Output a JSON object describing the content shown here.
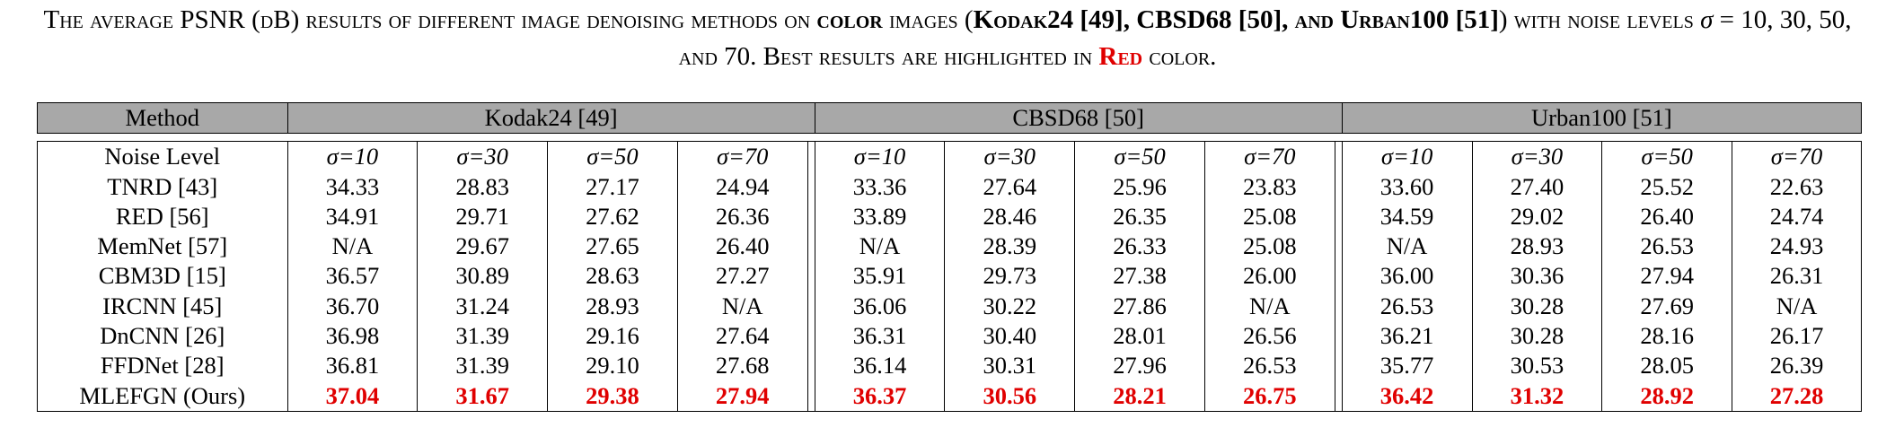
{
  "caption": {
    "part1": "The average PSNR (dB) results of different image denoising methods on ",
    "color_images": "color",
    "part2": " images (",
    "datasets_bold": "Kodak24 [49], CBSD68 [50], and Urban100 [51]",
    "part3": ") with noise levels ",
    "sigma_symbol": "σ",
    "part4": " = 10, 30, 50, and 70. Best results are highlighted in ",
    "red_word": "Red",
    "part5": " color."
  },
  "table": {
    "method_header": "Method",
    "datasets": [
      "Kodak24 [49]",
      "CBSD68 [50]",
      "Urban100 [51]"
    ],
    "noise_label": "Noise Level",
    "noise_levels": [
      "σ=10",
      "σ=30",
      "σ=50",
      "σ=70"
    ],
    "rows": [
      {
        "method": "TNRD  [43]",
        "values": [
          "34.33",
          "28.83",
          "27.17",
          "24.94",
          "33.36",
          "27.64",
          "25.96",
          "23.83",
          "33.60",
          "27.40",
          "25.52",
          "22.63"
        ]
      },
      {
        "method": "RED [56]",
        "values": [
          "34.91",
          "29.71",
          "27.62",
          "26.36",
          "33.89",
          "28.46",
          "26.35",
          "25.08",
          "34.59",
          "29.02",
          "26.40",
          "24.74"
        ]
      },
      {
        "method": "MemNet [57]",
        "values": [
          "N/A",
          "29.67",
          "27.65",
          "26.40",
          "N/A",
          "28.39",
          "26.33",
          "25.08",
          "N/A",
          "28.93",
          "26.53",
          "24.93"
        ]
      },
      {
        "method": "CBM3D [15]",
        "values": [
          "36.57",
          "30.89",
          "28.63",
          "27.27",
          "35.91",
          "29.73",
          "27.38",
          "26.00",
          "36.00",
          "30.36",
          "27.94",
          "26.31"
        ]
      },
      {
        "method": "IRCNN [45]",
        "values": [
          "36.70",
          "31.24",
          "28.93",
          "N/A",
          "36.06",
          "30.22",
          "27.86",
          "N/A",
          "26.53",
          "30.28",
          "27.69",
          "N/A"
        ]
      },
      {
        "method": "DnCNN [26]",
        "values": [
          "36.98",
          "31.39",
          "29.16",
          "27.64",
          "36.31",
          "30.40",
          "28.01",
          "26.56",
          "36.21",
          "30.28",
          "28.16",
          "26.17"
        ]
      },
      {
        "method": "FFDNet [28]",
        "values": [
          "36.81",
          "31.39",
          "29.10",
          "27.68",
          "36.14",
          "30.31",
          "27.96",
          "26.53",
          "35.77",
          "30.53",
          "28.05",
          "26.39"
        ]
      },
      {
        "method": "MLEFGN (Ours)",
        "values": [
          "37.04",
          "31.67",
          "29.38",
          "27.94",
          "36.37",
          "30.56",
          "28.21",
          "26.75",
          "36.42",
          "31.32",
          "28.92",
          "27.28"
        ],
        "best": true
      }
    ],
    "highlight_color": "#e00000",
    "header_bg": "#a8a8a8"
  }
}
